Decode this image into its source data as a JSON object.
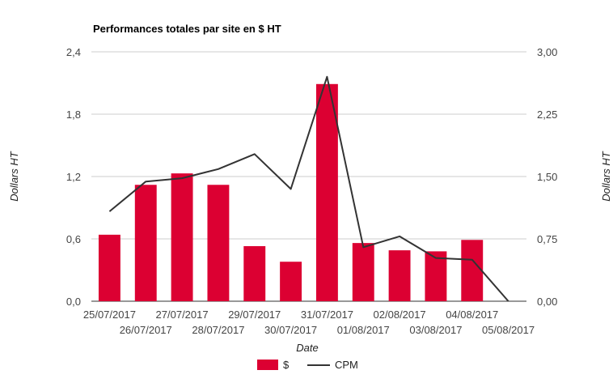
{
  "chart_data": {
    "type": "bar",
    "title": "Performances totales par site en $ HT",
    "xlabel": "Date",
    "ylabel_left": "Dollars HT",
    "ylabel_right": "Dollars HT",
    "categories": [
      "25/07/2017",
      "26/07/2017",
      "27/07/2017",
      "28/07/2017",
      "29/07/2017",
      "30/07/2017",
      "31/07/2017",
      "01/08/2017",
      "02/08/2017",
      "03/08/2017",
      "04/08/2017",
      "05/08/2017"
    ],
    "series": [
      {
        "name": "$",
        "type": "bar",
        "axis": "left",
        "color": "#dc0032",
        "values": [
          0.64,
          1.12,
          1.23,
          1.12,
          0.53,
          0.38,
          2.09,
          0.56,
          0.49,
          0.48,
          0.59,
          0
        ]
      },
      {
        "name": "CPM",
        "type": "line",
        "axis": "right",
        "color": "#333333",
        "values": [
          1.08,
          1.44,
          1.48,
          1.59,
          1.77,
          1.35,
          2.7,
          0.65,
          0.78,
          0.52,
          0.5,
          0.0
        ]
      }
    ],
    "ylim_left": [
      0,
      2.4
    ],
    "yticks_left": [
      "0,0",
      "0,6",
      "1,2",
      "1,8",
      "2,4"
    ],
    "ylim_right": [
      0,
      3.0
    ],
    "yticks_right": [
      "0,00",
      "0,75",
      "1,50",
      "2,25",
      "3,00"
    ],
    "grid": true,
    "legend_position": "bottom",
    "legend": [
      "$",
      "CPM"
    ]
  }
}
